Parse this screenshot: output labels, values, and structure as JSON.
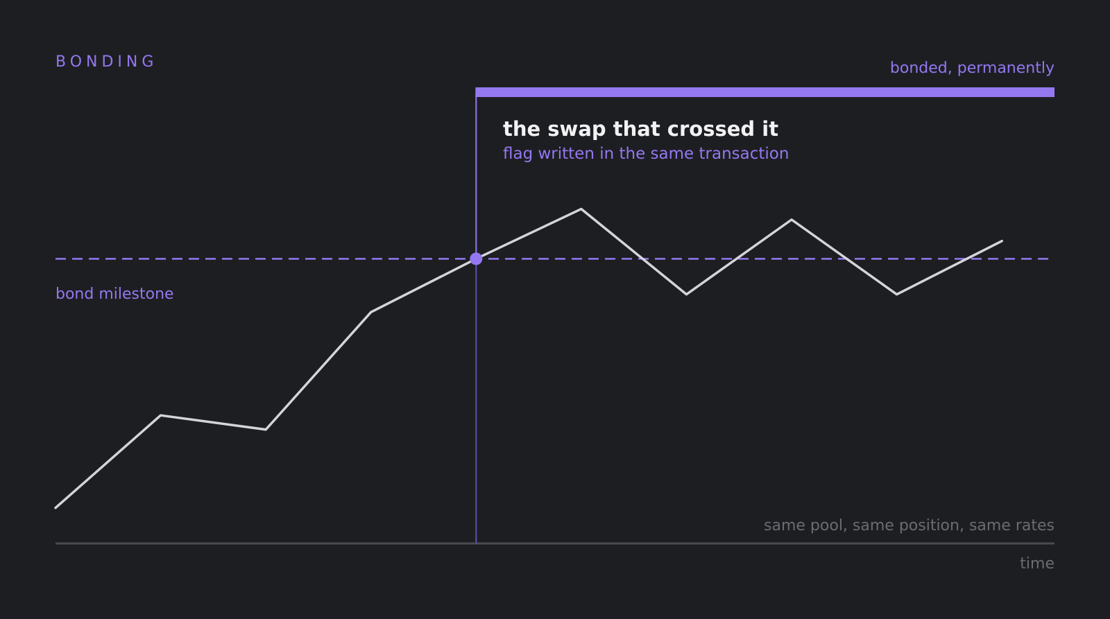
{
  "section_label": "BONDING",
  "colors": {
    "background": "#1d1e22",
    "accent": "#9478f0",
    "accent_muted": "#5f4fb0",
    "line": "#d4d4da",
    "axis": "#4a4b50",
    "heading": "#f2f2f4",
    "caption": "#6b6c72"
  },
  "chart_data": {
    "type": "line",
    "title": "",
    "xlabel": "time",
    "ylabel": "",
    "grid": false,
    "series": [
      {
        "x": [
          0,
          1,
          2,
          3,
          4,
          5,
          6,
          7,
          8,
          9
        ],
        "values": [
          0.1,
          0.36,
          0.32,
          0.65,
          0.8,
          0.94,
          0.7,
          0.91,
          0.7,
          0.85
        ]
      }
    ],
    "milestone": {
      "label": "bond milestone",
      "value": 0.8
    },
    "crossing": {
      "index": 4,
      "title": "the swap that crossed it",
      "subtitle": "flag written in the same transaction"
    },
    "bonded_label": "bonded, permanently",
    "baseline_note": "same pool, same position, same rates",
    "xlim": [
      0,
      9.5
    ],
    "ylim": [
      0,
      1.5
    ]
  }
}
